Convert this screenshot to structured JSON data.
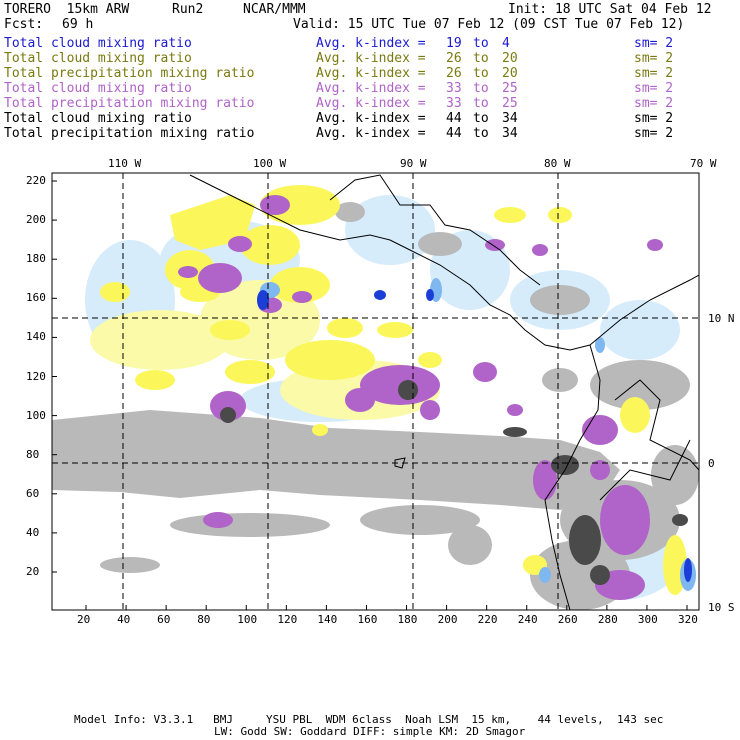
{
  "header": {
    "model": "TORERO  15km ARW",
    "run": "Run2",
    "org": "NCAR/MMM",
    "init": "Init: 18 UTC Sat 04 Feb 12",
    "fcst_label": "Fcst:",
    "fcst_value": "69 h",
    "valid": "Valid: 15 UTC Tue 07 Feb 12 (09 CST Tue 07 Feb 12)"
  },
  "legend": [
    {
      "field": "Total cloud mixing ratio",
      "avg": "Avg. k-index =",
      "from": "19",
      "to_word": "to",
      "to": "4",
      "sm": "sm= 2",
      "color": "#1a1ad0"
    },
    {
      "field": "Total cloud mixing ratio",
      "avg": "Avg. k-index =",
      "from": "26",
      "to_word": "to",
      "to": "20",
      "sm": "sm= 2",
      "color": "#7a7a10"
    },
    {
      "field": "Total precipitation mixing ratio",
      "avg": "Avg. k-index =",
      "from": "26",
      "to_word": "to",
      "to": "20",
      "sm": "sm= 2",
      "color": "#7a7a10"
    },
    {
      "field": "Total cloud mixing ratio",
      "avg": "Avg. k-index =",
      "from": "33",
      "to_word": "to",
      "to": "25",
      "sm": "sm= 2",
      "color": "#b063c8"
    },
    {
      "field": "Total precipitation mixing ratio",
      "avg": "Avg. k-index =",
      "from": "33",
      "to_word": "to",
      "to": "25",
      "sm": "sm= 2",
      "color": "#b063c8"
    },
    {
      "field": "Total cloud mixing ratio",
      "avg": "Avg. k-index =",
      "from": "44",
      "to_word": "to",
      "to": "34",
      "sm": "sm= 2",
      "color": "#000000"
    },
    {
      "field": "Total precipitation mixing ratio",
      "avg": "Avg. k-index =",
      "from": "44",
      "to_word": "to",
      "to": "34",
      "sm": "sm= 2",
      "color": "#000000"
    }
  ],
  "map": {
    "lon_labels": [
      "110 W",
      "100 W",
      "90 W",
      "80 W",
      "70 W"
    ],
    "lat_labels": [
      "10 N",
      "0",
      "10 S"
    ],
    "x_ticks": [
      "20",
      "40",
      "60",
      "80",
      "100",
      "120",
      "140",
      "160",
      "180",
      "200",
      "220",
      "240",
      "260",
      "280",
      "300",
      "320"
    ],
    "y_ticks": [
      "220",
      "200",
      "180",
      "160",
      "140",
      "120",
      "100",
      "80",
      "60",
      "40",
      "20"
    ],
    "colors": {
      "light_blue": "#d6ecfb",
      "blue": "#7fb7f0",
      "dark_blue": "#1b3fd6",
      "yellow": "#fbf75a",
      "pale_yellow": "#fbfaa8",
      "purple": "#b063c8",
      "gray": "#b9b9b9",
      "dark_gray": "#4a4a4a"
    }
  },
  "footer": {
    "line1": "Model Info: V3.3.1   BMJ     YSU PBL  WDM 6class  Noah LSM  15 km,    44 levels,  143 sec",
    "line2": "LW: Godd SW: Goddard DIFF: simple KM: 2D Smagor"
  }
}
